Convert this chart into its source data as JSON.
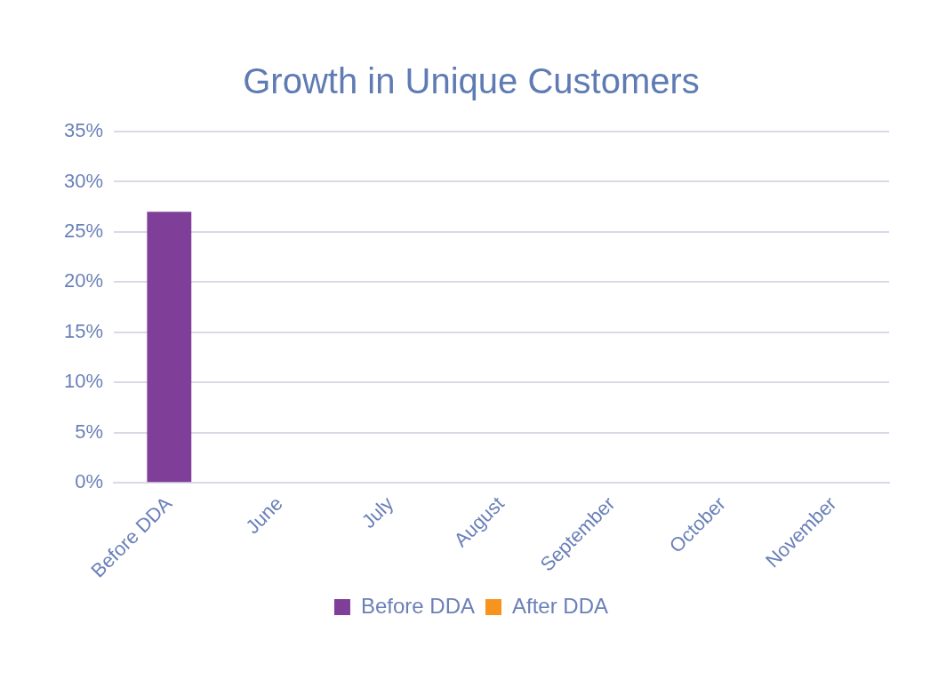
{
  "chart_data": {
    "type": "bar",
    "title": "Growth in Unique Customers",
    "categories": [
      "Before DDA",
      "June",
      "July",
      "August",
      "September",
      "October",
      "November"
    ],
    "series": [
      {
        "name": "Before DDA",
        "color": "#7f3f98",
        "values": [
          27,
          null,
          null,
          null,
          null,
          null,
          null
        ]
      },
      {
        "name": "After DDA",
        "color": "#f7941d",
        "values": [
          null,
          null,
          null,
          null,
          null,
          null,
          null
        ]
      }
    ],
    "ylim": [
      0,
      35
    ],
    "yticks": [
      {
        "value": 0,
        "label": "0%"
      },
      {
        "value": 5,
        "label": "5%"
      },
      {
        "value": 10,
        "label": "10%"
      },
      {
        "value": 15,
        "label": "15%"
      },
      {
        "value": 20,
        "label": "20%"
      },
      {
        "value": 25,
        "label": "25%"
      },
      {
        "value": 30,
        "label": "30%"
      },
      {
        "value": 35,
        "label": "35%"
      }
    ],
    "grid": "y",
    "legend": "bottom"
  }
}
